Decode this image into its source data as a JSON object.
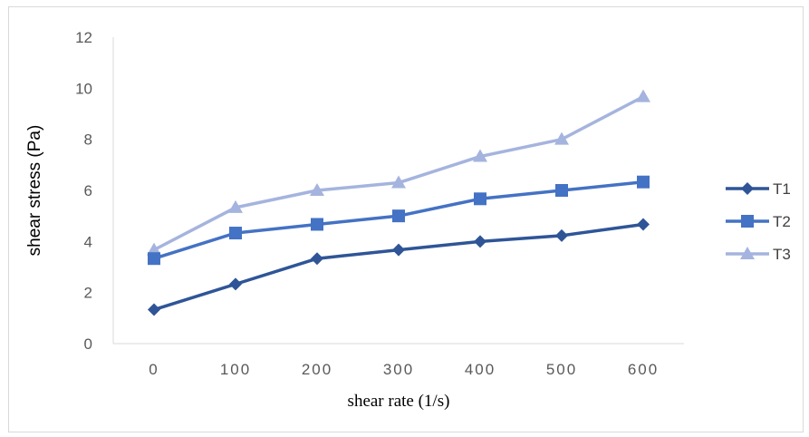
{
  "chart_data": {
    "type": "line",
    "x": [
      0,
      100,
      200,
      300,
      400,
      500,
      600
    ],
    "xlabel": "shear rate (1/s)",
    "ylabel": "shear stress (Pa)",
    "ylim": [
      0,
      12
    ],
    "yticks": [
      0,
      2,
      4,
      6,
      8,
      10,
      12
    ],
    "grid": false,
    "legend_position": "right",
    "series": [
      {
        "name": "T1",
        "values": [
          1.33,
          2.33,
          3.33,
          3.67,
          4.0,
          4.23,
          4.67
        ],
        "color": "#2F5597",
        "marker": "diamond"
      },
      {
        "name": "T2",
        "values": [
          3.33,
          4.33,
          4.67,
          5.0,
          5.67,
          6.0,
          6.33
        ],
        "color": "#4472C4",
        "marker": "square"
      },
      {
        "name": "T3",
        "values": [
          3.67,
          5.33,
          6.0,
          6.3,
          7.33,
          8.0,
          9.67
        ],
        "color": "#A5B4DE",
        "marker": "triangle"
      }
    ]
  }
}
